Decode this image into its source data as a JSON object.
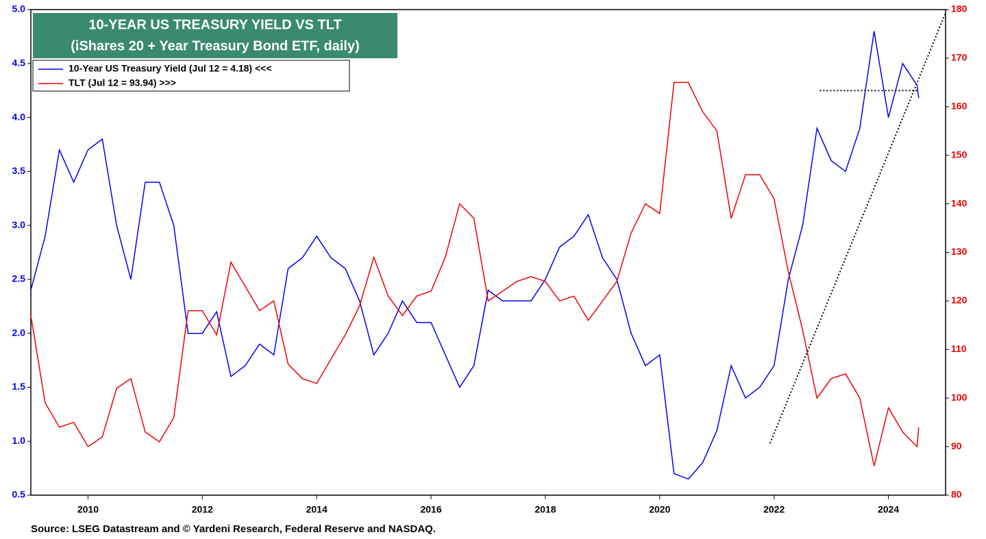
{
  "chart_data": {
    "type": "line",
    "title": "10-YEAR US TREASURY YIELD VS TLT",
    "subtitle": "(iShares 20 + Year Treasury Bond ETF, daily)",
    "source": "Source: LSEG Datastream and © Yardeni Research, Federal Reserve and NASDAQ.",
    "x": [
      2009.0,
      2009.25,
      2009.5,
      2009.75,
      2010.0,
      2010.25,
      2010.5,
      2010.75,
      2011.0,
      2011.25,
      2011.5,
      2011.75,
      2012.0,
      2012.25,
      2012.5,
      2012.75,
      2013.0,
      2013.25,
      2013.5,
      2013.75,
      2014.0,
      2014.25,
      2014.5,
      2014.75,
      2015.0,
      2015.25,
      2015.5,
      2015.75,
      2016.0,
      2016.25,
      2016.5,
      2016.75,
      2017.0,
      2017.25,
      2017.5,
      2017.75,
      2018.0,
      2018.25,
      2018.5,
      2018.75,
      2019.0,
      2019.25,
      2019.5,
      2019.75,
      2020.0,
      2020.25,
      2020.5,
      2020.75,
      2021.0,
      2021.25,
      2021.5,
      2021.75,
      2022.0,
      2022.25,
      2022.5,
      2022.75,
      2023.0,
      2023.25,
      2023.5,
      2023.75,
      2024.0,
      2024.25,
      2024.5,
      2024.53
    ],
    "series": [
      {
        "name": "10-Year US Treasury Yield (Jul 12 = 4.18) <<<",
        "color": "#0000ee",
        "axis": "y",
        "values": [
          2.4,
          2.9,
          3.7,
          3.4,
          3.7,
          3.8,
          3.0,
          2.5,
          3.4,
          3.4,
          3.0,
          2.0,
          2.0,
          2.2,
          1.6,
          1.7,
          1.9,
          1.8,
          2.6,
          2.7,
          2.9,
          2.7,
          2.6,
          2.3,
          1.8,
          2.0,
          2.3,
          2.1,
          2.1,
          1.8,
          1.5,
          1.7,
          2.4,
          2.3,
          2.3,
          2.3,
          2.5,
          2.8,
          2.9,
          3.1,
          2.7,
          2.5,
          2.0,
          1.7,
          1.8,
          0.7,
          0.65,
          0.8,
          1.1,
          1.7,
          1.4,
          1.5,
          1.7,
          2.5,
          3.0,
          3.9,
          3.6,
          3.5,
          3.9,
          4.8,
          4.0,
          4.5,
          4.3,
          4.18
        ]
      },
      {
        "name": "TLT (Jul 12 = 93.94) >>>",
        "color": "#ee0000",
        "axis": "y2",
        "values": [
          117,
          99,
          94,
          95,
          90,
          92,
          102,
          104,
          93,
          91,
          96,
          118,
          118,
          113,
          128,
          123,
          118,
          120,
          107,
          104,
          103,
          108,
          113,
          119,
          129,
          121,
          117,
          121,
          122,
          129,
          140,
          137,
          120,
          122,
          124,
          125,
          124,
          120,
          121,
          116,
          120,
          124,
          134,
          140,
          138,
          165,
          165,
          159,
          155,
          137,
          146,
          146,
          141,
          126,
          114,
          100,
          104,
          105,
          100,
          86,
          98,
          93,
          90,
          93.94
        ]
      }
    ],
    "reference_lines": [
      {
        "x": [
          2021.93,
          2025.0
        ],
        "y": [
          0.98,
          4.97
        ]
      },
      {
        "x": [
          2022.8,
          2024.53
        ],
        "y": [
          4.25,
          4.25
        ]
      }
    ],
    "xlim": [
      2009.0,
      2025.0
    ],
    "xticks": [
      2010,
      2012,
      2014,
      2016,
      2018,
      2020,
      2022,
      2024
    ],
    "ylim": [
      0.5,
      5.0
    ],
    "yticks": [
      0.5,
      {
        "value": 1,
        "label": "1.0"
      },
      1.5,
      {
        "value": 2,
        "label": "2.0"
      },
      2.5,
      {
        "value": 3,
        "label": "3.0"
      },
      3.5,
      {
        "value": 4,
        "label": "4.0"
      },
      4.5,
      {
        "value": 5,
        "label": "5.0"
      }
    ],
    "y2lim": [
      80,
      180
    ],
    "y2ticks": [
      80,
      90,
      100,
      110,
      120,
      130,
      140,
      150,
      160,
      170,
      180
    ],
    "title_box_color": "#3a8a6e"
  }
}
